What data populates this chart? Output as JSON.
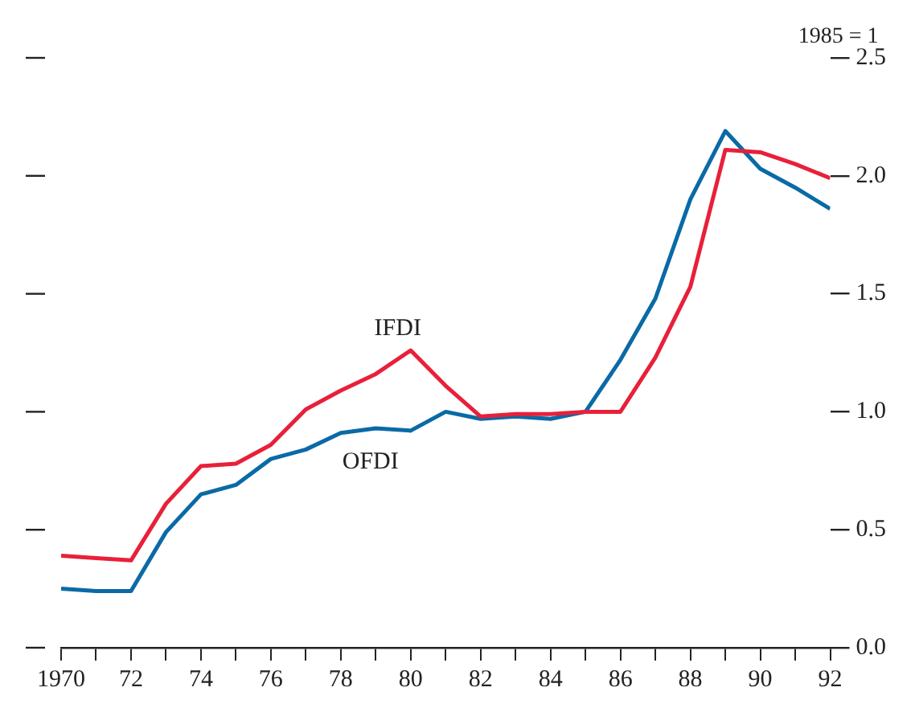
{
  "chart_data": {
    "type": "line",
    "x": [
      1970,
      1971,
      1972,
      1973,
      1974,
      1975,
      1976,
      1977,
      1978,
      1979,
      1980,
      1981,
      1982,
      1983,
      1984,
      1985,
      1986,
      1987,
      1988,
      1989,
      1990,
      1991,
      1992
    ],
    "series": [
      {
        "name": "IFDI",
        "color": "#e8203a",
        "values": [
          0.39,
          0.38,
          0.37,
          0.61,
          0.77,
          0.78,
          0.86,
          1.01,
          1.09,
          1.16,
          1.26,
          1.11,
          0.98,
          0.99,
          0.99,
          1.0,
          1.0,
          1.23,
          1.53,
          2.11,
          2.1,
          2.05,
          1.99
        ]
      },
      {
        "name": "OFDI",
        "color": "#0a6aa6",
        "values": [
          0.25,
          0.24,
          0.24,
          0.49,
          0.65,
          0.69,
          0.8,
          0.84,
          0.91,
          0.93,
          0.92,
          1.0,
          0.97,
          0.98,
          0.97,
          1.0,
          1.22,
          1.48,
          1.9,
          2.19,
          2.03,
          1.95,
          1.86
        ]
      }
    ],
    "xlim": [
      1970,
      1992
    ],
    "xticks": [
      {
        "value": 1970,
        "label": "1970"
      },
      {
        "value": 1971,
        "label": null
      },
      {
        "value": 1972,
        "label": "72"
      },
      {
        "value": 1973,
        "label": null
      },
      {
        "value": 1974,
        "label": "74"
      },
      {
        "value": 1975,
        "label": null
      },
      {
        "value": 1976,
        "label": "76"
      },
      {
        "value": 1977,
        "label": null
      },
      {
        "value": 1978,
        "label": "78"
      },
      {
        "value": 1979,
        "label": null
      },
      {
        "value": 1980,
        "label": "80"
      },
      {
        "value": 1981,
        "label": null
      },
      {
        "value": 1982,
        "label": "82"
      },
      {
        "value": 1983,
        "label": null
      },
      {
        "value": 1984,
        "label": "84"
      },
      {
        "value": 1985,
        "label": null
      },
      {
        "value": 1986,
        "label": "86"
      },
      {
        "value": 1987,
        "label": null
      },
      {
        "value": 1988,
        "label": "88"
      },
      {
        "value": 1989,
        "label": null
      },
      {
        "value": 1990,
        "label": "90"
      },
      {
        "value": 1991,
        "label": null
      },
      {
        "value": 1992,
        "label": "92"
      }
    ],
    "ylim": [
      0,
      2.5
    ],
    "yticks": [
      {
        "value": 0,
        "label": "0.0"
      },
      {
        "value": 0.5,
        "label": "0.5"
      },
      {
        "value": 1,
        "label": "1.0"
      },
      {
        "value": 1.5,
        "label": "1.5"
      },
      {
        "value": 2,
        "label": "2.0"
      },
      {
        "value": 2.5,
        "label": "2.5"
      }
    ],
    "annotations": [
      "1985 = 1"
    ],
    "grid": false,
    "legend": false,
    "marker": "none",
    "line_style": "solid"
  }
}
